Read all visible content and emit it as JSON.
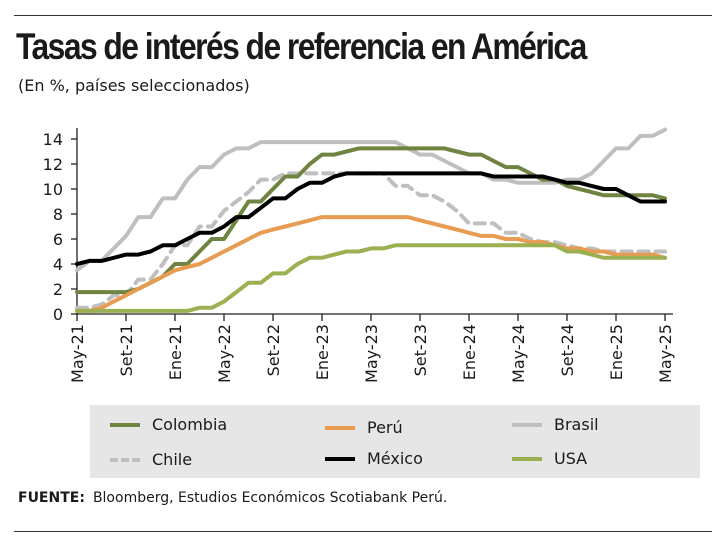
{
  "title": "Tasas de interés de referencia en América",
  "subtitle": "(En %, países seleccionados)",
  "footer": {
    "label": "FUENTE:",
    "text": "Bloomberg, Estudios Económicos Scotiabank Perú."
  },
  "chart_data": {
    "type": "line",
    "title": "Tasas de interés de referencia en América",
    "subtitle": "(En %, países seleccionados)",
    "ylim": [
      0,
      14
    ],
    "yticks": [
      0,
      2,
      4,
      6,
      8,
      10,
      12,
      14
    ],
    "xtick_labels": [
      "May-21",
      "Set-21",
      "Ene-21",
      "May-22",
      "Set-22",
      "Ene-23",
      "May-23",
      "Set-23",
      "Ene-24",
      "May-24",
      "Set-24",
      "Ene-25",
      "May-25"
    ],
    "x_start": "2021-05",
    "x_end": "2025-05",
    "x_frequency": "monthly",
    "grid": false,
    "legend_placement": "bottom",
    "series": [
      {
        "name": "Colombia",
        "color": "#6e8440",
        "dash": false,
        "values": [
          1.75,
          1.75,
          1.75,
          1.75,
          1.75,
          2.0,
          2.5,
          3.0,
          4.0,
          4.0,
          5.0,
          6.0,
          6.0,
          7.5,
          9.0,
          9.0,
          10.0,
          11.0,
          11.0,
          12.0,
          12.75,
          12.75,
          13.0,
          13.25,
          13.25,
          13.25,
          13.25,
          13.25,
          13.25,
          13.25,
          13.25,
          13.0,
          12.75,
          12.75,
          12.25,
          11.75,
          11.75,
          11.25,
          10.75,
          10.75,
          10.25,
          10.0,
          9.75,
          9.5,
          9.5,
          9.5,
          9.5,
          9.5,
          9.25
        ]
      },
      {
        "name": "Perú",
        "color": "#e89c52",
        "dash": false,
        "values": [
          0.25,
          0.25,
          0.5,
          1.0,
          1.5,
          2.0,
          2.5,
          3.0,
          3.5,
          3.75,
          4.0,
          4.5,
          5.0,
          5.5,
          6.0,
          6.5,
          6.75,
          7.0,
          7.25,
          7.5,
          7.75,
          7.75,
          7.75,
          7.75,
          7.75,
          7.75,
          7.75,
          7.75,
          7.5,
          7.25,
          7.0,
          6.75,
          6.5,
          6.25,
          6.25,
          6.0,
          6.0,
          5.75,
          5.75,
          5.5,
          5.25,
          5.25,
          5.0,
          5.0,
          4.75,
          4.75,
          4.75,
          4.75,
          4.5
        ]
      },
      {
        "name": "Brasil",
        "color": "#bfbfbf",
        "dash": false,
        "values": [
          3.5,
          4.25,
          4.25,
          5.25,
          6.25,
          7.75,
          7.75,
          9.25,
          9.25,
          10.75,
          11.75,
          11.75,
          12.75,
          13.25,
          13.25,
          13.75,
          13.75,
          13.75,
          13.75,
          13.75,
          13.75,
          13.75,
          13.75,
          13.75,
          13.75,
          13.75,
          13.75,
          13.25,
          12.75,
          12.75,
          12.25,
          11.75,
          11.25,
          11.25,
          10.75,
          10.75,
          10.5,
          10.5,
          10.5,
          10.5,
          10.75,
          10.75,
          11.25,
          12.25,
          13.25,
          13.25,
          14.25,
          14.25,
          14.75
        ]
      },
      {
        "name": "Chile",
        "color": "#bfbfbf",
        "dash": true,
        "values": [
          0.5,
          0.5,
          0.75,
          1.5,
          1.5,
          2.75,
          2.75,
          4.0,
          5.5,
          5.5,
          7.0,
          7.0,
          8.25,
          9.0,
          9.75,
          10.75,
          10.75,
          11.25,
          11.25,
          11.25,
          11.25,
          11.25,
          11.25,
          11.25,
          11.25,
          11.25,
          10.25,
          10.25,
          9.5,
          9.5,
          9.0,
          8.25,
          7.25,
          7.25,
          7.25,
          6.5,
          6.5,
          6.0,
          5.75,
          5.75,
          5.5,
          5.25,
          5.25,
          5.0,
          5.0,
          5.0,
          5.0,
          5.0,
          5.0
        ]
      },
      {
        "name": "México",
        "color": "#000000",
        "dash": false,
        "values": [
          4.0,
          4.25,
          4.25,
          4.5,
          4.75,
          4.75,
          5.0,
          5.5,
          5.5,
          6.0,
          6.5,
          6.5,
          7.0,
          7.75,
          7.75,
          8.5,
          9.25,
          9.25,
          10.0,
          10.5,
          10.5,
          11.0,
          11.25,
          11.25,
          11.25,
          11.25,
          11.25,
          11.25,
          11.25,
          11.25,
          11.25,
          11.25,
          11.25,
          11.25,
          11.0,
          11.0,
          11.0,
          11.0,
          11.0,
          10.75,
          10.5,
          10.5,
          10.25,
          10.0,
          10.0,
          9.5,
          9.0,
          9.0,
          9.0
        ]
      },
      {
        "name": "USA",
        "color": "#9bb050",
        "dash": false,
        "values": [
          0.25,
          0.25,
          0.25,
          0.25,
          0.25,
          0.25,
          0.25,
          0.25,
          0.25,
          0.25,
          0.5,
          0.5,
          1.0,
          1.75,
          2.5,
          2.5,
          3.25,
          3.25,
          4.0,
          4.5,
          4.5,
          4.75,
          5.0,
          5.0,
          5.25,
          5.25,
          5.5,
          5.5,
          5.5,
          5.5,
          5.5,
          5.5,
          5.5,
          5.5,
          5.5,
          5.5,
          5.5,
          5.5,
          5.5,
          5.5,
          5.0,
          5.0,
          4.75,
          4.5,
          4.5,
          4.5,
          4.5,
          4.5,
          4.5
        ]
      }
    ]
  }
}
